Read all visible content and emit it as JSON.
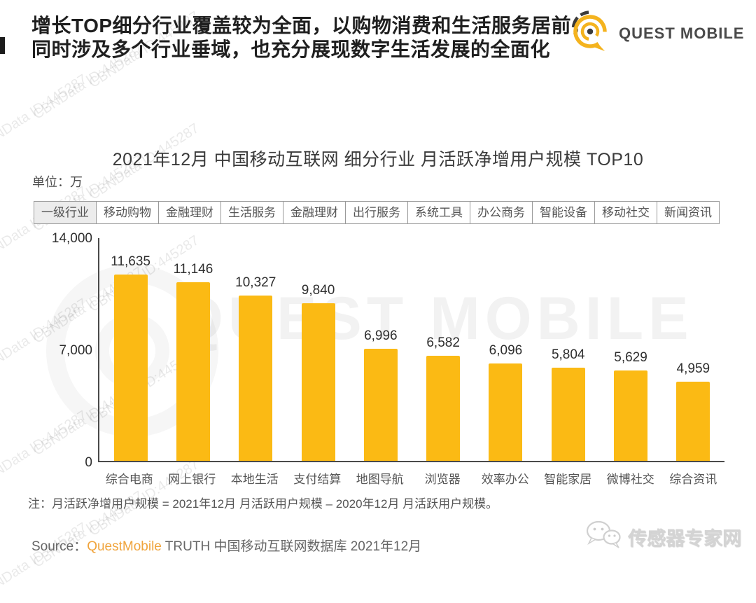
{
  "page": {
    "title_line1": "增长TOP细分行业覆盖较为全面，以购物消费和生活服务居前，",
    "title_line2": "同时涉及多个行业垂域，也充分展现数字生活发展的全面化"
  },
  "logo": {
    "text": "QUEST MOBILE"
  },
  "chart_header": {
    "title": "2021年12月 中国移动互联网 细分行业 月活跃净增用户规模 TOP10",
    "unit": "单位：万"
  },
  "category_row": {
    "label": "一级行业",
    "cells": [
      "移动购物",
      "金融理财",
      "生活服务",
      "金融理财",
      "出行服务",
      "系统工具",
      "办公商务",
      "智能设备",
      "移动社交",
      "新闻资讯"
    ]
  },
  "chart_data": {
    "type": "bar",
    "title": "2021年12月 中国移动互联网 细分行业 月活跃净增用户规模 TOP10",
    "unit": "万",
    "categories": [
      "综合电商",
      "网上银行",
      "本地生活",
      "支付结算",
      "地图导航",
      "浏览器",
      "效率办公",
      "智能家居",
      "微博社交",
      "综合资讯"
    ],
    "values": [
      11635,
      11146,
      10327,
      9840,
      6996,
      6582,
      6096,
      5804,
      5629,
      4959
    ],
    "value_labels": [
      "11,635",
      "11,146",
      "10,327",
      "9,840",
      "6,996",
      "6,582",
      "6,096",
      "5,804",
      "5,629",
      "4,959"
    ],
    "ylim": [
      0,
      14000
    ],
    "yticks": [
      0,
      7000,
      14000
    ],
    "ytick_labels": [
      "0",
      "7,000",
      "14,000"
    ],
    "bar_color": "#FBBA14",
    "grid": false,
    "legend_position": "none"
  },
  "note": "注：月活跃净增用户规模 = 2021年12月 月活跃用户规模 – 2020年12月 月活跃用户规模。",
  "source": {
    "prefix": "Source：",
    "brand": "QuestMobile",
    "suffix": " TRUTH 中国移动互联网数据库 2021年12月",
    "brand_color": "#F0A43C"
  },
  "footer_brand": {
    "text": "传感器专家网"
  },
  "watermarks": {
    "tile_text": "CBNData ID:445287",
    "big_text": "QUEST MOBILE"
  }
}
